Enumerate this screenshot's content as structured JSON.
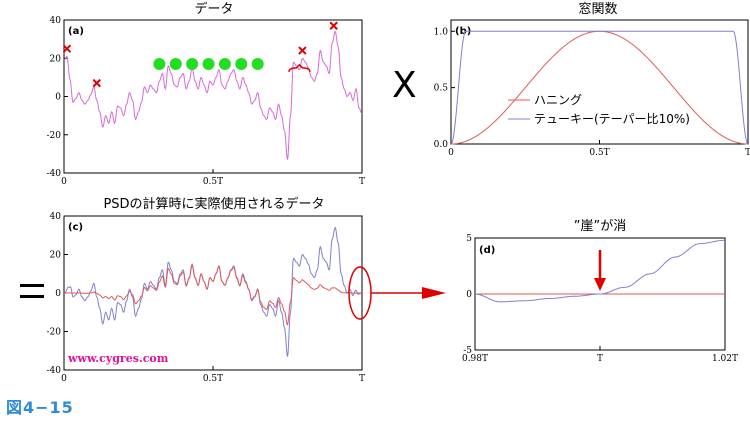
{
  "figure_label": "図4−15",
  "watermark": "www.cygres.com",
  "operators": {
    "multiply": "X",
    "equals": "="
  },
  "colors": {
    "data_line": "#d96ad6",
    "hanning": "#e05a5a",
    "tukey": "#8080d0",
    "mark_x": "#e00000",
    "dot": "#22dd22",
    "arrow": "#e00000",
    "fig_label": "#2f8bd6",
    "watermark": "#e0119a"
  },
  "chart_data": [
    {
      "id": "a",
      "type": "line",
      "title": "データ",
      "tag": "(a)",
      "x_ticks": [
        {
          "v": 0,
          "label": "0"
        },
        {
          "v": 0.5,
          "label": "0.5T"
        },
        {
          "v": 1,
          "label": "T"
        }
      ],
      "ylim": [
        -40,
        40
      ],
      "y_ticks": [
        -40,
        -20,
        0,
        20,
        40
      ],
      "xlim": [
        0,
        1
      ],
      "series": [
        {
          "color": "#d96ad6",
          "x": [
            0,
            0.01,
            0.02,
            0.03,
            0.04,
            0.05,
            0.06,
            0.07,
            0.08,
            0.09,
            0.1,
            0.11,
            0.12,
            0.13,
            0.14,
            0.15,
            0.16,
            0.17,
            0.18,
            0.19,
            0.2,
            0.21,
            0.22,
            0.23,
            0.24,
            0.25,
            0.26,
            0.27,
            0.28,
            0.29,
            0.3,
            0.31,
            0.32,
            0.33,
            0.34,
            0.35,
            0.36,
            0.37,
            0.38,
            0.39,
            0.4,
            0.41,
            0.42,
            0.43,
            0.44,
            0.45,
            0.46,
            0.47,
            0.48,
            0.49,
            0.5,
            0.51,
            0.52,
            0.53,
            0.54,
            0.55,
            0.56,
            0.57,
            0.58,
            0.59,
            0.6,
            0.61,
            0.62,
            0.63,
            0.64,
            0.65,
            0.66,
            0.67,
            0.68,
            0.69,
            0.7,
            0.71,
            0.72,
            0.73,
            0.74,
            0.75,
            0.76,
            0.77,
            0.78,
            0.79,
            0.8,
            0.81,
            0.82,
            0.83,
            0.84,
            0.85,
            0.86,
            0.87,
            0.88,
            0.89,
            0.9,
            0.91,
            0.92,
            0.93,
            0.94,
            0.95,
            0.96,
            0.97,
            0.98,
            0.99,
            1
          ],
          "y": [
            19,
            21,
            9,
            -3,
            -1,
            2,
            -2,
            -4,
            -2,
            1,
            5,
            -2,
            -8,
            -16,
            -10,
            -14,
            -8,
            -14,
            -5,
            -6,
            -10,
            -4,
            2,
            -2,
            -12,
            -8,
            -3,
            5,
            2,
            6,
            4,
            2,
            8,
            12,
            4,
            16,
            12,
            6,
            5,
            10,
            12,
            4,
            8,
            15,
            8,
            4,
            10,
            6,
            2,
            8,
            6,
            10,
            14,
            6,
            4,
            8,
            12,
            14,
            8,
            4,
            10,
            6,
            2,
            -4,
            -2,
            2,
            -6,
            -10,
            -12,
            -6,
            -8,
            -12,
            -4,
            -10,
            -18,
            -33,
            -10,
            18,
            16,
            14,
            20,
            18,
            15,
            10,
            8,
            12,
            24,
            18,
            16,
            12,
            28,
            34,
            26,
            10,
            4,
            0,
            2,
            -2,
            4,
            -6,
            -9
          ]
        }
      ],
      "x_markers": [
        {
          "x": 0.01,
          "y": 25
        },
        {
          "x": 0.11,
          "y": 7
        },
        {
          "x": 0.8,
          "y": 24
        },
        {
          "x": 0.905,
          "y": 37
        }
      ],
      "dots": [
        {
          "x": 0.32,
          "y": 17
        },
        {
          "x": 0.375,
          "y": 17
        },
        {
          "x": 0.43,
          "y": 17
        },
        {
          "x": 0.485,
          "y": 17
        },
        {
          "x": 0.54,
          "y": 17
        },
        {
          "x": 0.595,
          "y": 17
        },
        {
          "x": 0.65,
          "y": 17
        }
      ]
    },
    {
      "id": "b",
      "type": "line",
      "title": "窓関数",
      "tag": "(b)",
      "x_ticks": [
        {
          "v": 0,
          "label": "0"
        },
        {
          "v": 0.5,
          "label": "0.5T"
        },
        {
          "v": 1,
          "label": "T"
        }
      ],
      "ylim": [
        0,
        1.1
      ],
      "y_ticks": [
        0.0,
        0.5,
        1.0
      ],
      "y_tick_labels": [
        "0.0",
        "0.5",
        "1.0"
      ],
      "xlim": [
        0,
        1
      ],
      "series": [
        {
          "name": "ハニング",
          "color": "#e05a5a",
          "function": "hanning"
        },
        {
          "name": "テューキー(テーパー比10%)",
          "color": "#8080d0",
          "function": "tukey",
          "taper_ratio": 0.1
        }
      ]
    },
    {
      "id": "c",
      "type": "line",
      "title": "PSDの計算時に実際使用されるデータ",
      "tag": "(c)",
      "x_ticks": [
        {
          "v": 0,
          "label": "0"
        },
        {
          "v": 0.5,
          "label": "0.5T"
        },
        {
          "v": 1,
          "label": "T"
        }
      ],
      "ylim": [
        -40,
        40
      ],
      "y_ticks": [
        -40,
        -20,
        0,
        20,
        40
      ],
      "xlim": [
        0,
        1
      ],
      "series": [
        {
          "color": "#8080d0",
          "source": "a",
          "window": "tukey"
        },
        {
          "color": "#e05a5a",
          "source": "a",
          "window": "hanning"
        }
      ]
    },
    {
      "id": "d",
      "type": "line",
      "title": "”崖”が消",
      "tag": "(d)",
      "x_ticks": [
        {
          "v": 0.98,
          "label": "0.98T"
        },
        {
          "v": 1.0,
          "label": "T"
        },
        {
          "v": 1.02,
          "label": "1.02T"
        }
      ],
      "ylim": [
        -5,
        5
      ],
      "y_ticks": [
        -5,
        0,
        5
      ],
      "xlim": [
        0.98,
        1.02
      ],
      "series": [
        {
          "color": "#8080d0",
          "x": [
            0.98,
            0.984,
            0.988,
            0.992,
            0.996,
            1.0,
            1.004,
            1.008,
            1.012,
            1.016,
            1.02
          ],
          "y": [
            0,
            -0.7,
            -0.6,
            -0.4,
            -0.2,
            0,
            0.6,
            1.8,
            3.3,
            4.5,
            4.8
          ]
        },
        {
          "color": "#e05a5a",
          "x": [
            0.98,
            1.02
          ],
          "y": [
            0,
            0
          ]
        }
      ],
      "arrow_at": 1.0
    }
  ]
}
